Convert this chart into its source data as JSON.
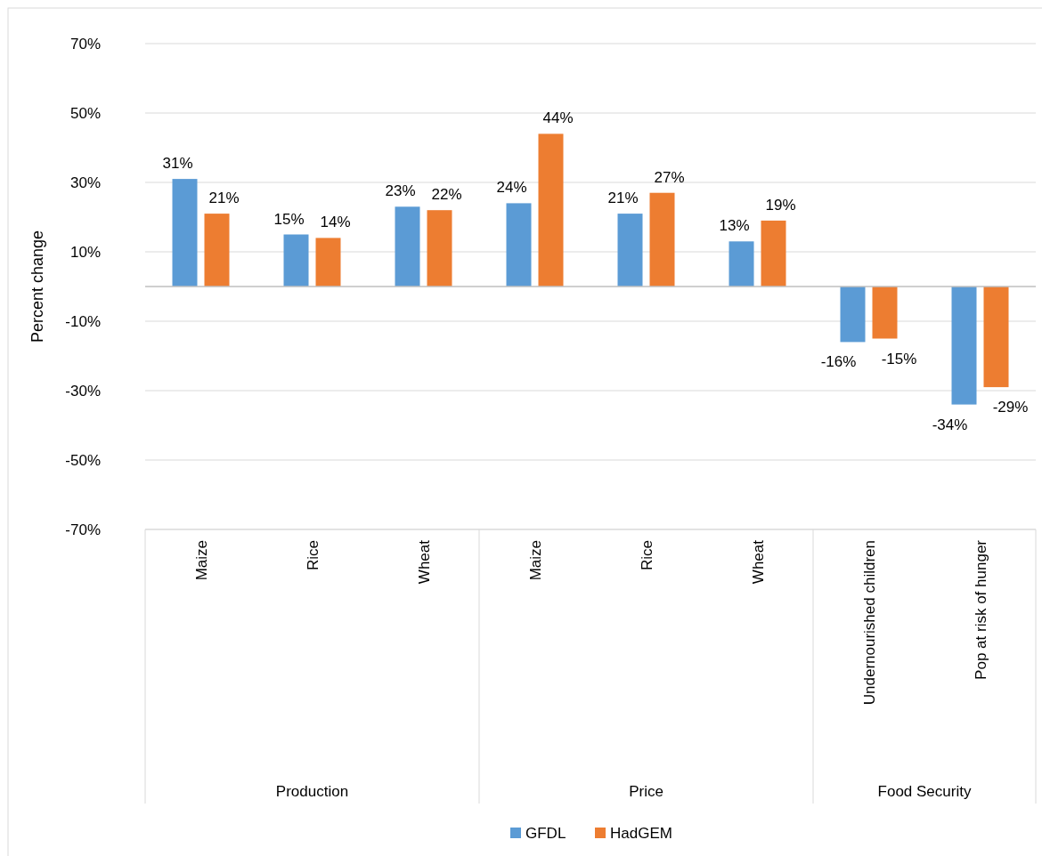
{
  "chart_data": {
    "type": "bar",
    "ylabel": "Percent change",
    "categories": [
      "Maize",
      "Rice",
      "Wheat",
      "Maize",
      "Rice",
      "Wheat",
      "Undernourished children",
      "Pop at risk of hunger"
    ],
    "series": [
      {
        "name": "GFDL",
        "color": "#5b9bd5",
        "values": [
          31,
          15,
          23,
          24,
          21,
          13,
          -16,
          -34
        ],
        "value_labels": [
          "31%",
          "15%",
          "23%",
          "24%",
          "21%",
          "13%",
          "-16%",
          "-34%"
        ]
      },
      {
        "name": "HadGEM",
        "color": "#ed7d31",
        "values": [
          21,
          14,
          22,
          44,
          27,
          19,
          -15,
          -29
        ],
        "value_labels": [
          "21%",
          "14%",
          "22%",
          "44%",
          "27%",
          "19%",
          "-15%",
          "-29%"
        ]
      }
    ],
    "ylim": [
      -70,
      70
    ],
    "yticks": [
      {
        "value": -70,
        "label": "-70%"
      },
      {
        "value": -50,
        "label": "-50%"
      },
      {
        "value": -30,
        "label": "-30%"
      },
      {
        "value": -10,
        "label": "-10%"
      },
      {
        "value": 10,
        "label": "10%"
      },
      {
        "value": 30,
        "label": "30%"
      },
      {
        "value": 50,
        "label": "50%"
      },
      {
        "value": 70,
        "label": "70%"
      }
    ],
    "grid": "y",
    "legend": "bottom",
    "annotations": [
      "Production",
      "Price",
      "Food Security"
    ]
  }
}
